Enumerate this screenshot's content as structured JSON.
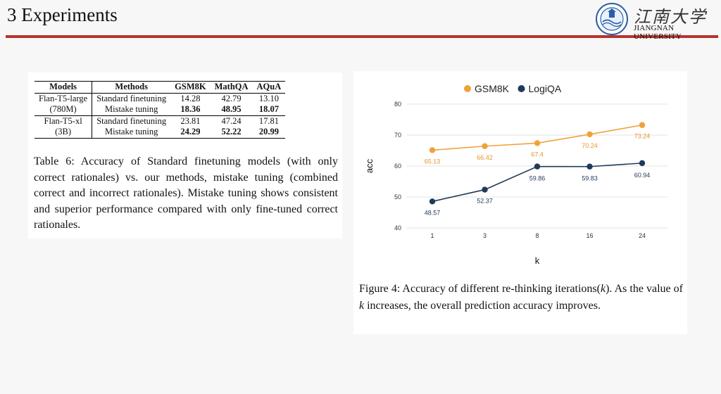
{
  "slide": {
    "title": "3 Experiments",
    "logo_cn": "江南大学",
    "logo_en": "JIANGNAN UNIVERSITY"
  },
  "table": {
    "headers": [
      "Models",
      "Methods",
      "GSM8K",
      "MathQA",
      "AQuA"
    ],
    "groups": [
      {
        "model_line1": "Flan-T5-large",
        "model_line2": "(780M)",
        "rows": [
          {
            "method": "Standard finetuning",
            "gsm8k": "14.28",
            "mathqa": "42.79",
            "aqua": "13.10"
          },
          {
            "method": "Mistake tuning",
            "gsm8k": "18.36",
            "mathqa": "48.95",
            "aqua": "18.07"
          }
        ]
      },
      {
        "model_line1": "Flan-T5-xl",
        "model_line2": "(3B)",
        "rows": [
          {
            "method": "Standard finetuning",
            "gsm8k": "23.81",
            "mathqa": "47.24",
            "aqua": "17.81"
          },
          {
            "method": "Mistake tuning",
            "gsm8k": "24.29",
            "mathqa": "52.22",
            "aqua": "20.99"
          }
        ]
      }
    ],
    "caption": "Table 6: Accuracy of Standard finetuning models (with only correct rationales) vs. our methods, mistake tuning (combined correct and incorrect rationales). Mistake tuning shows consistent and superior performance compared with only fine-tuned correct rationales."
  },
  "figure": {
    "caption_a": "Figure 4: Accuracy of different re-thinking iterations(",
    "caption_k1": "k",
    "caption_b": "). As the value of ",
    "caption_k2": "k",
    "caption_c": " increases, the overall prediction accuracy improves."
  },
  "chart_data": {
    "type": "line",
    "categories": [
      "1",
      "3",
      "8",
      "16",
      "24"
    ],
    "series": [
      {
        "name": "GSM8K",
        "color": "#f0a23a",
        "values": [
          65.13,
          66.42,
          67.4,
          70.24,
          73.24
        ],
        "labels": [
          "65.13",
          "66.42",
          "67.4",
          "70.24",
          "73.24"
        ]
      },
      {
        "name": "LogiQA",
        "color": "#1f3a5a",
        "values": [
          48.57,
          52.37,
          59.86,
          59.83,
          60.94
        ],
        "labels": [
          "48.57",
          "52.37",
          "59.86",
          "59.83",
          "60.94"
        ]
      }
    ],
    "xlabel": "k",
    "ylabel": "acc",
    "ylim": [
      40,
      80
    ],
    "yticks": [
      40,
      50,
      60,
      70,
      80
    ],
    "grid": true,
    "legend_position": "top-center"
  }
}
